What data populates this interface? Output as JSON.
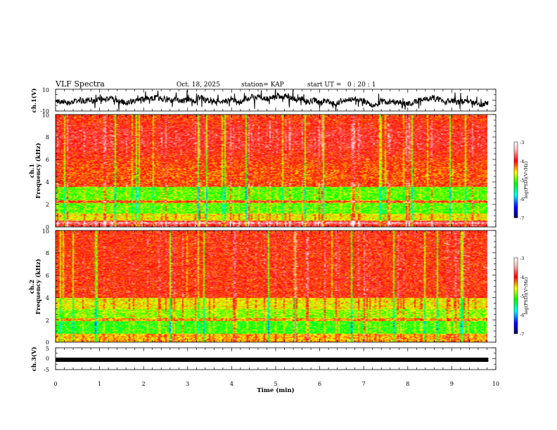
{
  "chart_data": {
    "type": "heatmap",
    "title": "VLF Spectra",
    "date": "Oct. 18, 2025",
    "station": "station= KAP",
    "start": "start UT =   0 : 20 : 1",
    "x": {
      "label": "Time (min)",
      "range": [
        0,
        10
      ],
      "ticks": [
        "0",
        "1",
        "2",
        "3",
        "4",
        "5",
        "6",
        "7",
        "8",
        "9",
        "10"
      ],
      "data_end": 9.83
    },
    "ch1_wave": {
      "ylabel": "ch.1(V)",
      "range": [
        -10,
        10
      ],
      "ticks": [
        "10",
        "-10"
      ]
    },
    "ch1_spec": {
      "ylabel": "ch.1",
      "ylabel2": "Frequency (kHz)",
      "range": [
        0,
        10
      ],
      "ticks": [
        "0",
        "2",
        "4",
        "6",
        "8",
        "10"
      ],
      "colorbar": {
        "label": "log(PSD)(V²/Hz)",
        "range": [
          -7,
          -3
        ],
        "ticks": [
          "-3",
          "-4",
          "-5",
          "-6",
          "-7"
        ]
      }
    },
    "ch2_spec": {
      "ylabel": "ch.2",
      "ylabel2": "Frequency (kHz)",
      "range": [
        0,
        10
      ],
      "ticks": [
        "0",
        "2",
        "4",
        "6",
        "8",
        "10"
      ],
      "colorbar": {
        "label": "log(PSD)(V²/Hz)",
        "range": [
          -7,
          -3
        ],
        "ticks": [
          "-3",
          "-4",
          "-5",
          "-6",
          "-7"
        ]
      }
    },
    "ch3_wave": {
      "ylabel": "ch.3(V)",
      "range": [
        -5,
        5
      ],
      "ticks": [
        "5",
        "0",
        "-5"
      ],
      "level": -0.5
    },
    "colormap": [
      "#000060",
      "#0000ff",
      "#00ffff",
      "#00ff00",
      "#ffff00",
      "#ff0000",
      "#ffc0c0",
      "#ffffff"
    ]
  }
}
